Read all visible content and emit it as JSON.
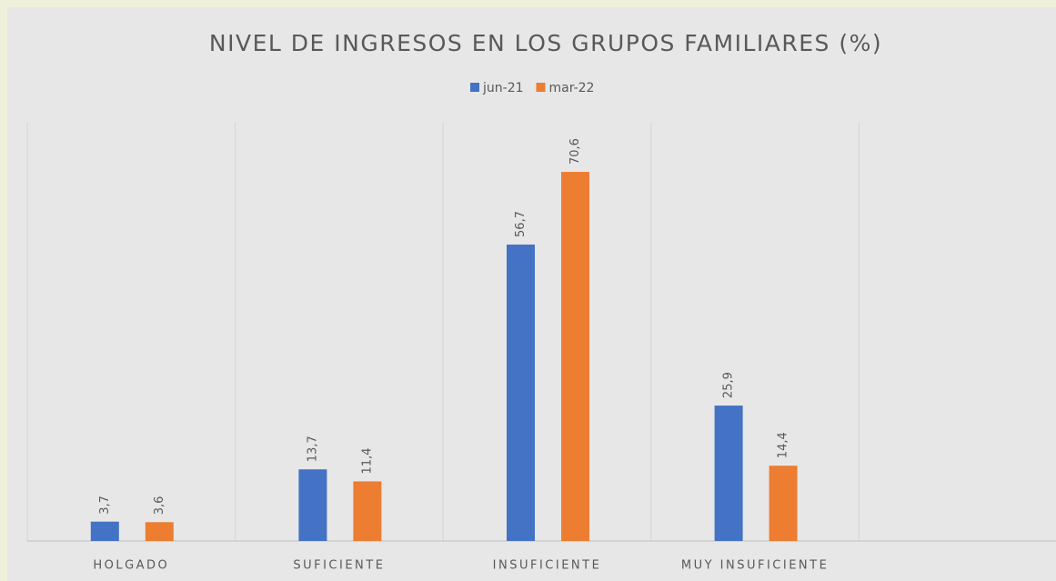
{
  "chart_data": {
    "type": "bar",
    "title": "NIVEL DE INGRESOS EN LOS GRUPOS FAMILIARES (%)",
    "categories": [
      "HOLGADO",
      "SUFICIENTE",
      "INSUFICIENTE",
      "MUY INSUFICIENTE",
      null
    ],
    "series": [
      {
        "name": "jun-21",
        "color": "#4472c4",
        "values": [
          3.7,
          13.7,
          56.7,
          25.9,
          null
        ],
        "value_labels": [
          "3,7",
          "13,7",
          "56,7",
          "25,9",
          null
        ]
      },
      {
        "name": "mar-22",
        "color": "#ed7d31",
        "values": [
          3.6,
          11.4,
          70.6,
          14.4,
          null
        ],
        "value_labels": [
          "3,6",
          "11,4",
          "70,6",
          "14,4",
          null
        ]
      }
    ],
    "ylim": [
      0,
      80
    ],
    "legend": "top"
  }
}
